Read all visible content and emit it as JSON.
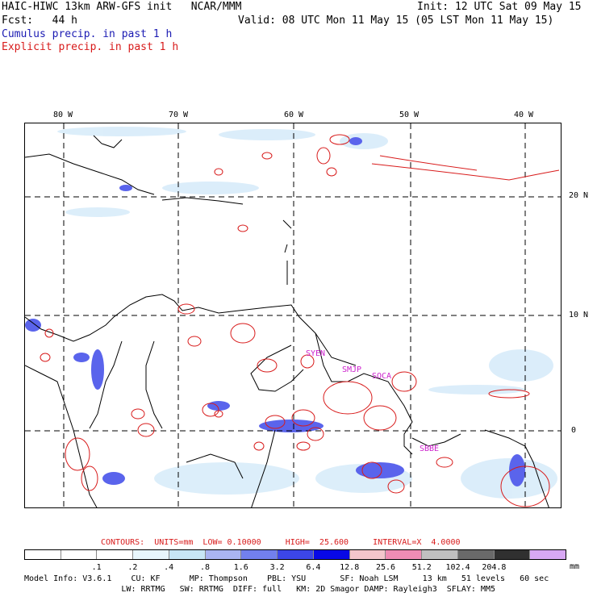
{
  "header": {
    "line1_left": "HAIC-HIWC 13km ARW-GFS init   NCAR/MMM",
    "line1_right": "Init: 12 UTC Sat 09 May 15",
    "line2_left": "Fcst:   44 h",
    "line2_right": "Valid: 08 UTC Mon 11 May 15 (05 LST Mon 11 May 15)",
    "legend_cumulus": "Cumulus precip. in past 1 h",
    "legend_explicit": "Explicit precip. in past 1 h",
    "cumulus_color": "#1b1bb3",
    "explicit_color": "#d81b1b"
  },
  "map": {
    "lon_ticks": [
      "80 W",
      "70 W",
      "60 W",
      "50 W",
      "40 W"
    ],
    "lat_ticks": [
      "20 N",
      "10 N",
      "0"
    ],
    "stations": [
      "SYEN",
      "SMJP",
      "SOCA",
      "SBBE"
    ],
    "station_color": "#cc22cc",
    "coast_color": "#000000"
  },
  "contours": {
    "label": "CONTOURS:  UNITS=mm  LOW= 0.10000     HIGH=  25.600     INTERVAL=X  4.0000"
  },
  "colorbar": {
    "unit": "mm",
    "labels": [
      ".1",
      ".2",
      ".4",
      ".8",
      "1.6",
      "3.2",
      "6.4",
      "12.8",
      "25.6",
      "51.2",
      "102.4",
      "204.8"
    ],
    "colors": [
      "#ffffff",
      "#ffffff",
      "#ffffff",
      "#e8f6fc",
      "#c8e6f6",
      "#aab4f2",
      "#7280ee",
      "#3c46e8",
      "#0808e6",
      "#f4c6cc",
      "#f08cb4",
      "#c0c0c0",
      "#6a6a6a",
      "#303030",
      "#d8a8f4"
    ]
  },
  "model_info": {
    "line1": "Model Info: V3.6.1    CU: KF      MP: Thompson    PBL: YSU       SF: Noah LSM     13 km   51 levels   60 sec",
    "line2": "                    LW: RRTMG   SW: RRTMG  DIFF: full   KM: 2D Smagor DAMP: Rayleigh3  SFLAY: MM5"
  }
}
